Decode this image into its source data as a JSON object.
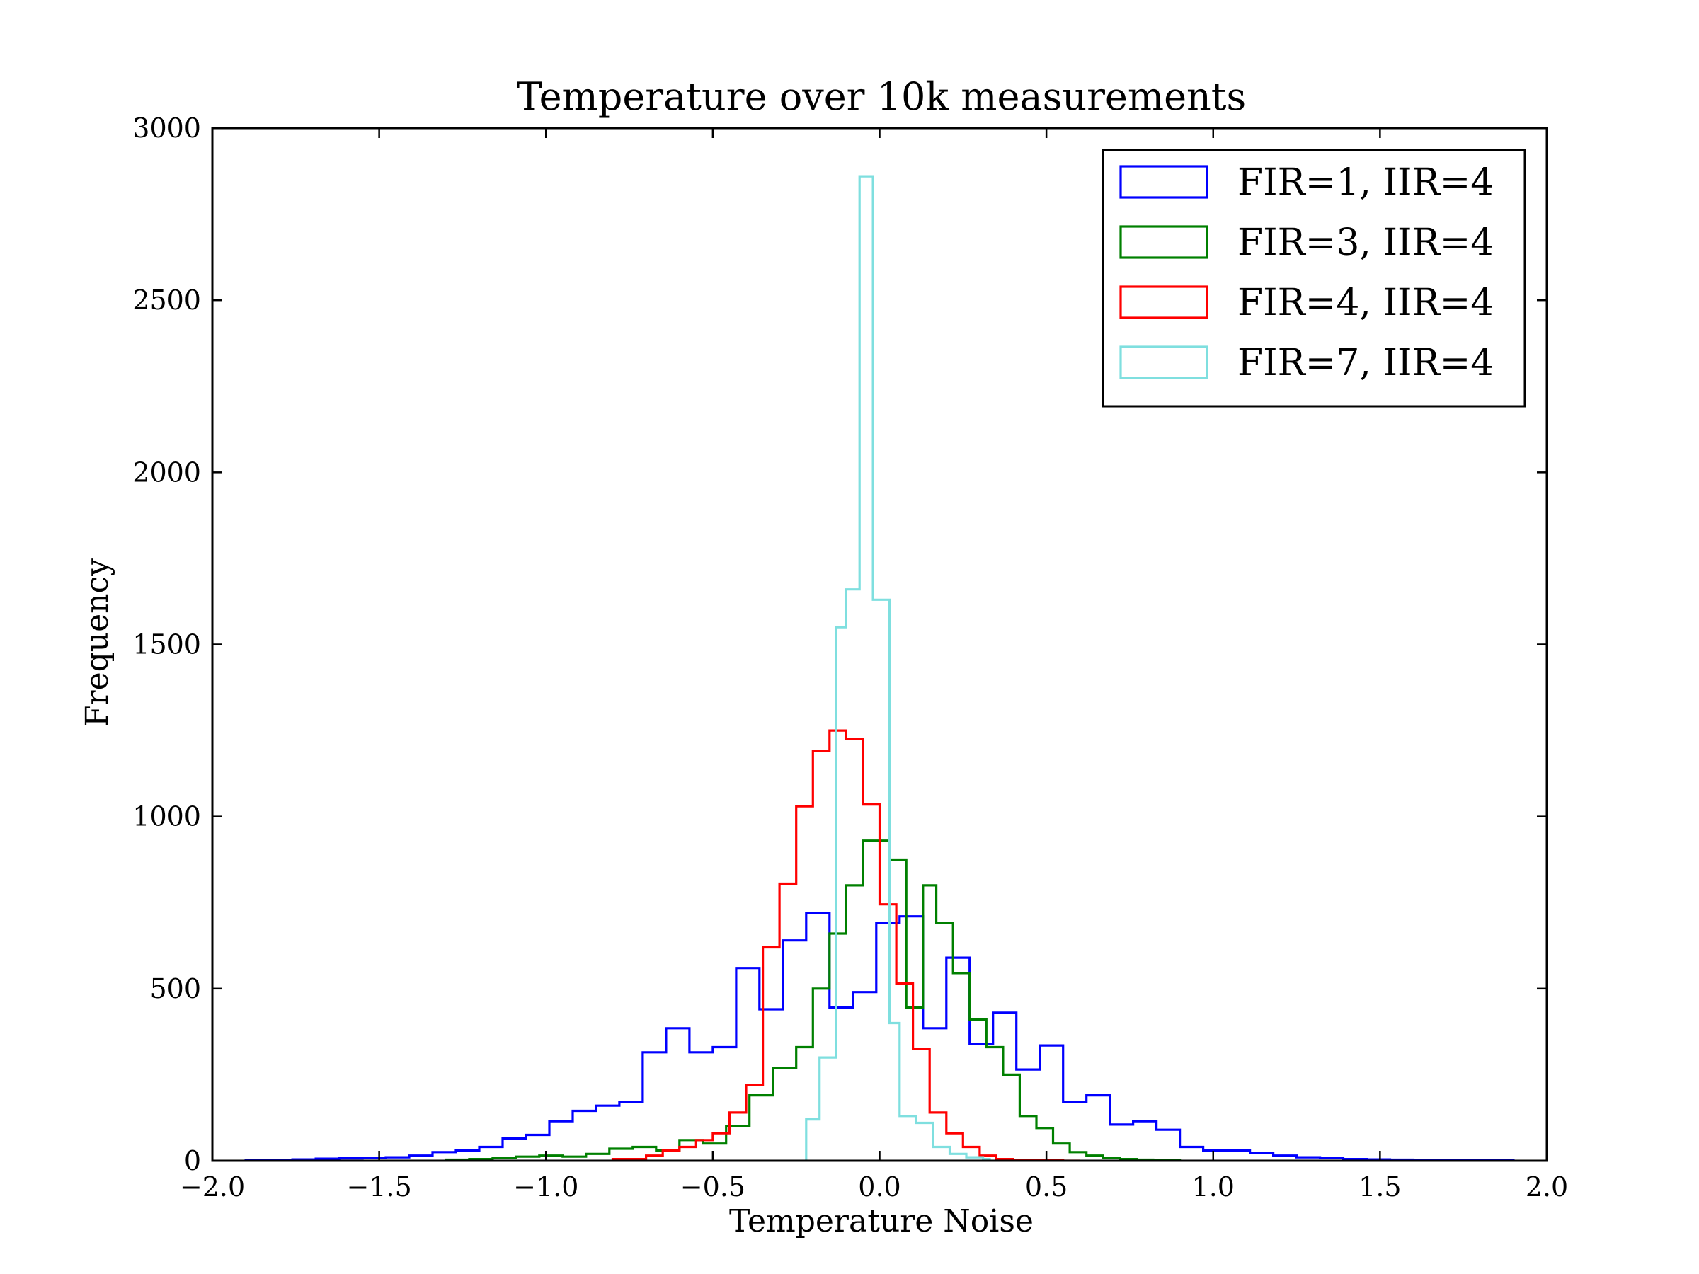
{
  "chart_data": {
    "type": "histogram",
    "title": "Temperature over 10k measurements",
    "xlabel": "Temperature Noise",
    "ylabel": "Frequency",
    "xlim": [
      -2.0,
      2.0
    ],
    "ylim": [
      0,
      3000
    ],
    "x_ticks": [
      -2.0,
      -1.5,
      -1.0,
      -0.5,
      0.0,
      0.5,
      1.0,
      1.5,
      2.0
    ],
    "x_tick_labels": [
      "−2.0",
      "−1.5",
      "−1.0",
      "−0.5",
      "0.0",
      "0.5",
      "1.0",
      "1.5",
      "2.0"
    ],
    "y_ticks": [
      0,
      500,
      1000,
      1500,
      2000,
      2500,
      3000
    ],
    "y_tick_labels": [
      "0",
      "500",
      "1000",
      "1500",
      "2000",
      "2500",
      "3000"
    ],
    "grid": false,
    "legend_position": "top-right",
    "series": [
      {
        "name": "FIR=1, IIR=4",
        "color": "#0000ff",
        "bin_edges": [
          -1.9,
          -1.83,
          -1.76,
          -1.69,
          -1.62,
          -1.55,
          -1.48,
          -1.41,
          -1.34,
          -1.27,
          -1.2,
          -1.13,
          -1.06,
          -0.99,
          -0.92,
          -0.85,
          -0.78,
          -0.71,
          -0.64,
          -0.57,
          -0.5,
          -0.43,
          -0.36,
          -0.29,
          -0.22,
          -0.15,
          -0.08,
          -0.01,
          0.06,
          0.13,
          0.2,
          0.27,
          0.34,
          0.41,
          0.48,
          0.55,
          0.62,
          0.69,
          0.76,
          0.83,
          0.9,
          0.97,
          1.04,
          1.11,
          1.18,
          1.25,
          1.32,
          1.39,
          1.46,
          1.53,
          1.6,
          1.67,
          1.74,
          1.81,
          1.9
        ],
        "counts": [
          2,
          2,
          4,
          6,
          7,
          8,
          10,
          15,
          25,
          30,
          40,
          65,
          75,
          115,
          145,
          160,
          170,
          315,
          385,
          315,
          330,
          560,
          440,
          640,
          720,
          445,
          490,
          690,
          710,
          385,
          590,
          340,
          430,
          265,
          335,
          170,
          190,
          105,
          115,
          90,
          40,
          30,
          30,
          22,
          15,
          10,
          8,
          5,
          4,
          3,
          2,
          2,
          1,
          1
        ]
      },
      {
        "name": "FIR=3, IIR=4",
        "color": "#008000",
        "bin_edges": [
          -1.3,
          -1.23,
          -1.16,
          -1.09,
          -1.02,
          -0.95,
          -0.88,
          -0.81,
          -0.74,
          -0.67,
          -0.6,
          -0.53,
          -0.46,
          -0.39,
          -0.32,
          -0.25,
          -0.2,
          -0.15,
          -0.1,
          -0.05,
          0.03,
          0.08,
          0.13,
          0.17,
          0.22,
          0.27,
          0.32,
          0.37,
          0.42,
          0.47,
          0.52,
          0.57,
          0.62,
          0.67,
          0.72,
          0.77,
          0.82,
          0.87,
          0.9
        ],
        "counts": [
          3,
          5,
          8,
          12,
          15,
          12,
          20,
          35,
          40,
          30,
          60,
          50,
          100,
          190,
          270,
          330,
          500,
          660,
          800,
          930,
          875,
          445,
          800,
          690,
          545,
          410,
          330,
          250,
          130,
          95,
          50,
          25,
          15,
          8,
          5,
          3,
          2,
          1
        ]
      },
      {
        "name": "FIR=4, IIR=4",
        "color": "#ff0000",
        "bin_edges": [
          -0.8,
          -0.7,
          -0.65,
          -0.6,
          -0.55,
          -0.5,
          -0.45,
          -0.4,
          -0.35,
          -0.3,
          -0.25,
          -0.2,
          -0.15,
          -0.1,
          -0.05,
          0.0,
          0.05,
          0.1,
          0.15,
          0.2,
          0.25,
          0.3,
          0.35,
          0.4,
          0.45,
          0.5,
          0.55,
          0.6
        ],
        "counts": [
          5,
          15,
          30,
          40,
          60,
          80,
          140,
          220,
          620,
          805,
          1030,
          1190,
          1250,
          1225,
          1035,
          745,
          515,
          325,
          140,
          80,
          40,
          15,
          5,
          2,
          1,
          1,
          0
        ]
      },
      {
        "name": "FIR=7, IIR=4",
        "color": "#7fdfdf",
        "bin_edges": [
          -0.22,
          -0.18,
          -0.13,
          -0.1,
          -0.06,
          -0.02,
          0.03,
          0.06,
          0.11,
          0.16,
          0.21,
          0.26,
          0.31,
          0.33
        ],
        "counts": [
          120,
          300,
          1550,
          1660,
          2860,
          1630,
          400,
          130,
          110,
          40,
          20,
          10,
          5
        ]
      }
    ]
  }
}
